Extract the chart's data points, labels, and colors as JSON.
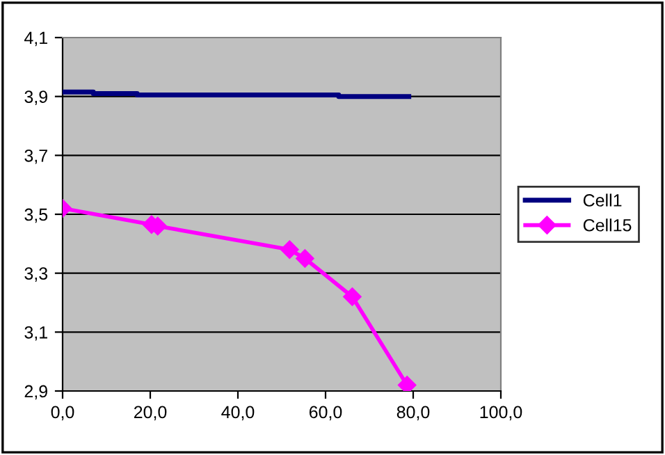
{
  "chart_data": {
    "type": "line",
    "series": [
      {
        "name": "Cell1",
        "color": "#000080",
        "marker": "none",
        "x": [
          0,
          7,
          7,
          17,
          17,
          63,
          63,
          79
        ],
        "values": [
          3.915,
          3.915,
          3.91,
          3.91,
          3.905,
          3.905,
          3.9,
          3.9
        ]
      },
      {
        "name": "Cell15",
        "color": "#ff00ff",
        "marker": "diamond",
        "x": [
          0,
          20.3,
          21.7,
          51.8,
          55.3,
          66.1,
          78.6
        ],
        "values": [
          3.52,
          3.465,
          3.46,
          3.38,
          3.35,
          3.22,
          2.92
        ]
      }
    ],
    "xlim": [
      0,
      100
    ],
    "xticks": [
      {
        "value": 0,
        "label": "0,0"
      },
      {
        "value": 20,
        "label": "20,0"
      },
      {
        "value": 40,
        "label": "40,0"
      },
      {
        "value": 60,
        "label": "60,0"
      },
      {
        "value": 80,
        "label": "80,0"
      },
      {
        "value": 100,
        "label": "100,0"
      }
    ],
    "ylim": [
      2.9,
      4.1
    ],
    "yticks": [
      {
        "value": 2.9,
        "label": "2,9"
      },
      {
        "value": 3.1,
        "label": "3,1"
      },
      {
        "value": 3.3,
        "label": "3,3"
      },
      {
        "value": 3.5,
        "label": "3,5"
      },
      {
        "value": 3.7,
        "label": "3,7"
      },
      {
        "value": 3.9,
        "label": "3,9"
      },
      {
        "value": 4.1,
        "label": "4,1"
      }
    ],
    "grid": "y",
    "legend": "right"
  }
}
